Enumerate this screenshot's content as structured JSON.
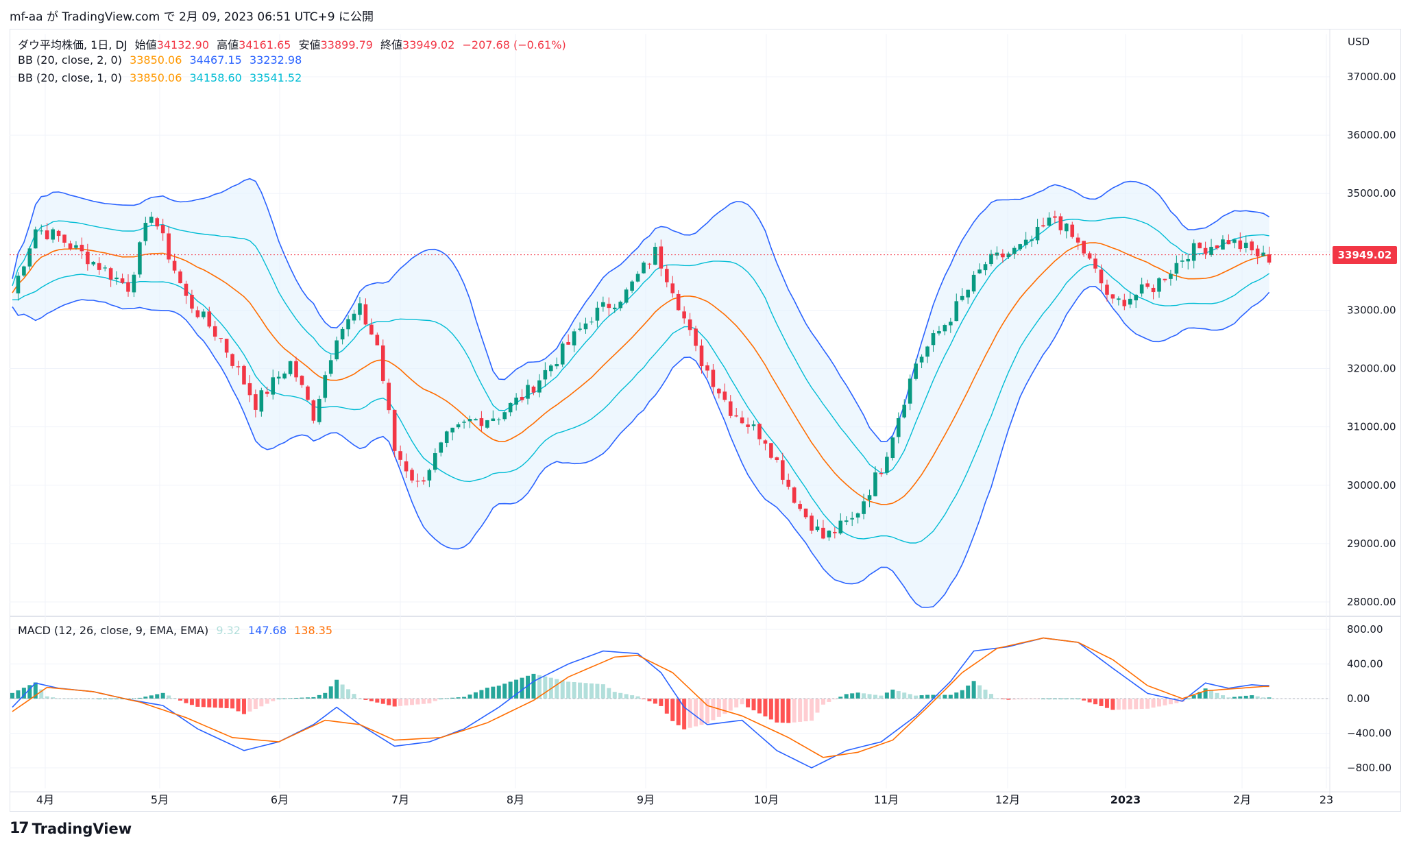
{
  "header": {
    "text": "mf-aa が TradingView.com で 2月 09, 2023 06:51 UTC+9 に公開"
  },
  "legend": {
    "ohlc": {
      "name": "ダウ平均株価, 1日, DJ",
      "open_label": "始値",
      "open": "34132.90",
      "high_label": "高値",
      "high": "34161.65",
      "low_label": "安値",
      "low": "33899.79",
      "close_label": "終値",
      "close": "33949.02",
      "change": "−207.68 (−0.61%)"
    },
    "bb2": {
      "name": "BB (20, close, 2, 0)",
      "basis": "33850.06",
      "upper": "34467.15",
      "lower": "33232.98"
    },
    "bb1": {
      "name": "BB (20, close, 1, 0)",
      "basis": "33850.06",
      "upper": "34158.60",
      "lower": "33541.52"
    },
    "macd": {
      "name": "MACD (12, 26, close, 9, EMA, EMA)",
      "hist": "9.32",
      "macd": "147.68",
      "signal": "138.35"
    }
  },
  "currency": "USD",
  "last_price": "33949.02",
  "watermark": "TradingView",
  "colors": {
    "up": "#089981",
    "down": "#f23645",
    "bb2": "#2962ff",
    "bb1": "#00bcd4",
    "basis": "#ff6d00",
    "macd": "#2962ff",
    "signal": "#ff6d00",
    "fill": "#e3f2fd"
  },
  "chart_data": {
    "type": "candlestick",
    "price_axis_ticks": [
      "37000.00",
      "36000.00",
      "35000.00",
      "34000.00",
      "33000.00",
      "32000.00",
      "31000.00",
      "30000.00",
      "29000.00",
      "28000.00"
    ],
    "price_ylim": [
      27800,
      37300
    ],
    "macd_axis_ticks": [
      "800.00",
      "400.00",
      "0.00",
      "−400.00",
      "−800.00"
    ],
    "macd_ylim": [
      -900,
      850
    ],
    "x_labels": [
      "4月",
      "5月",
      "6月",
      "7月",
      "8月",
      "9月",
      "10月",
      "11月",
      "12月",
      "2023",
      "2月",
      "23"
    ],
    "close_path": [
      [
        0,
        33300
      ],
      [
        4,
        34400
      ],
      [
        8,
        34250
      ],
      [
        13,
        33900
      ],
      [
        20,
        33400
      ],
      [
        24,
        34700
      ],
      [
        30,
        33200
      ],
      [
        36,
        32500
      ],
      [
        42,
        31400
      ],
      [
        48,
        32100
      ],
      [
        52,
        31200
      ],
      [
        56,
        32600
      ],
      [
        60,
        33000
      ],
      [
        63,
        32400
      ],
      [
        66,
        30600
      ],
      [
        70,
        30000
      ],
      [
        75,
        30800
      ],
      [
        79,
        31100
      ],
      [
        84,
        31200
      ],
      [
        89,
        31600
      ],
      [
        95,
        32300
      ],
      [
        100,
        32900
      ],
      [
        106,
        33300
      ],
      [
        111,
        34000
      ],
      [
        114,
        33400
      ],
      [
        118,
        32300
      ],
      [
        124,
        31300
      ],
      [
        130,
        30800
      ],
      [
        136,
        29600
      ],
      [
        140,
        29100
      ],
      [
        145,
        29400
      ],
      [
        150,
        30300
      ],
      [
        156,
        32100
      ],
      [
        162,
        32900
      ],
      [
        168,
        33800
      ],
      [
        175,
        34100
      ],
      [
        180,
        34600
      ],
      [
        185,
        34000
      ],
      [
        190,
        33100
      ],
      [
        197,
        33400
      ],
      [
        203,
        34000
      ],
      [
        210,
        34200
      ],
      [
        216,
        33900
      ]
    ],
    "macd_line": [
      [
        0,
        -100
      ],
      [
        4,
        180
      ],
      [
        8,
        120
      ],
      [
        14,
        80
      ],
      [
        20,
        -10
      ],
      [
        26,
        -80
      ],
      [
        32,
        -350
      ],
      [
        40,
        -600
      ],
      [
        46,
        -500
      ],
      [
        52,
        -300
      ],
      [
        56,
        -100
      ],
      [
        60,
        -300
      ],
      [
        66,
        -550
      ],
      [
        72,
        -500
      ],
      [
        78,
        -350
      ],
      [
        84,
        -100
      ],
      [
        90,
        200
      ],
      [
        96,
        400
      ],
      [
        102,
        550
      ],
      [
        108,
        520
      ],
      [
        112,
        300
      ],
      [
        116,
        -100
      ],
      [
        120,
        -300
      ],
      [
        126,
        -250
      ],
      [
        132,
        -600
      ],
      [
        138,
        -800
      ],
      [
        144,
        -600
      ],
      [
        150,
        -500
      ],
      [
        156,
        -200
      ],
      [
        162,
        200
      ],
      [
        166,
        550
      ],
      [
        172,
        600
      ],
      [
        178,
        700
      ],
      [
        184,
        650
      ],
      [
        190,
        350
      ],
      [
        196,
        60
      ],
      [
        202,
        -30
      ],
      [
        206,
        180
      ],
      [
        210,
        120
      ],
      [
        214,
        160
      ],
      [
        216,
        150
      ]
    ],
    "signal_line": [
      [
        0,
        -150
      ],
      [
        6,
        130
      ],
      [
        14,
        80
      ],
      [
        22,
        -40
      ],
      [
        30,
        -220
      ],
      [
        38,
        -450
      ],
      [
        46,
        -500
      ],
      [
        54,
        -250
      ],
      [
        60,
        -300
      ],
      [
        66,
        -480
      ],
      [
        74,
        -450
      ],
      [
        82,
        -280
      ],
      [
        90,
        -20
      ],
      [
        96,
        250
      ],
      [
        104,
        480
      ],
      [
        108,
        500
      ],
      [
        114,
        300
      ],
      [
        120,
        -80
      ],
      [
        126,
        -200
      ],
      [
        134,
        -450
      ],
      [
        140,
        -680
      ],
      [
        146,
        -620
      ],
      [
        152,
        -480
      ],
      [
        158,
        -100
      ],
      [
        164,
        300
      ],
      [
        170,
        580
      ],
      [
        178,
        700
      ],
      [
        184,
        650
      ],
      [
        190,
        450
      ],
      [
        196,
        150
      ],
      [
        202,
        0
      ],
      [
        206,
        90
      ],
      [
        212,
        120
      ],
      [
        216,
        140
      ]
    ]
  }
}
